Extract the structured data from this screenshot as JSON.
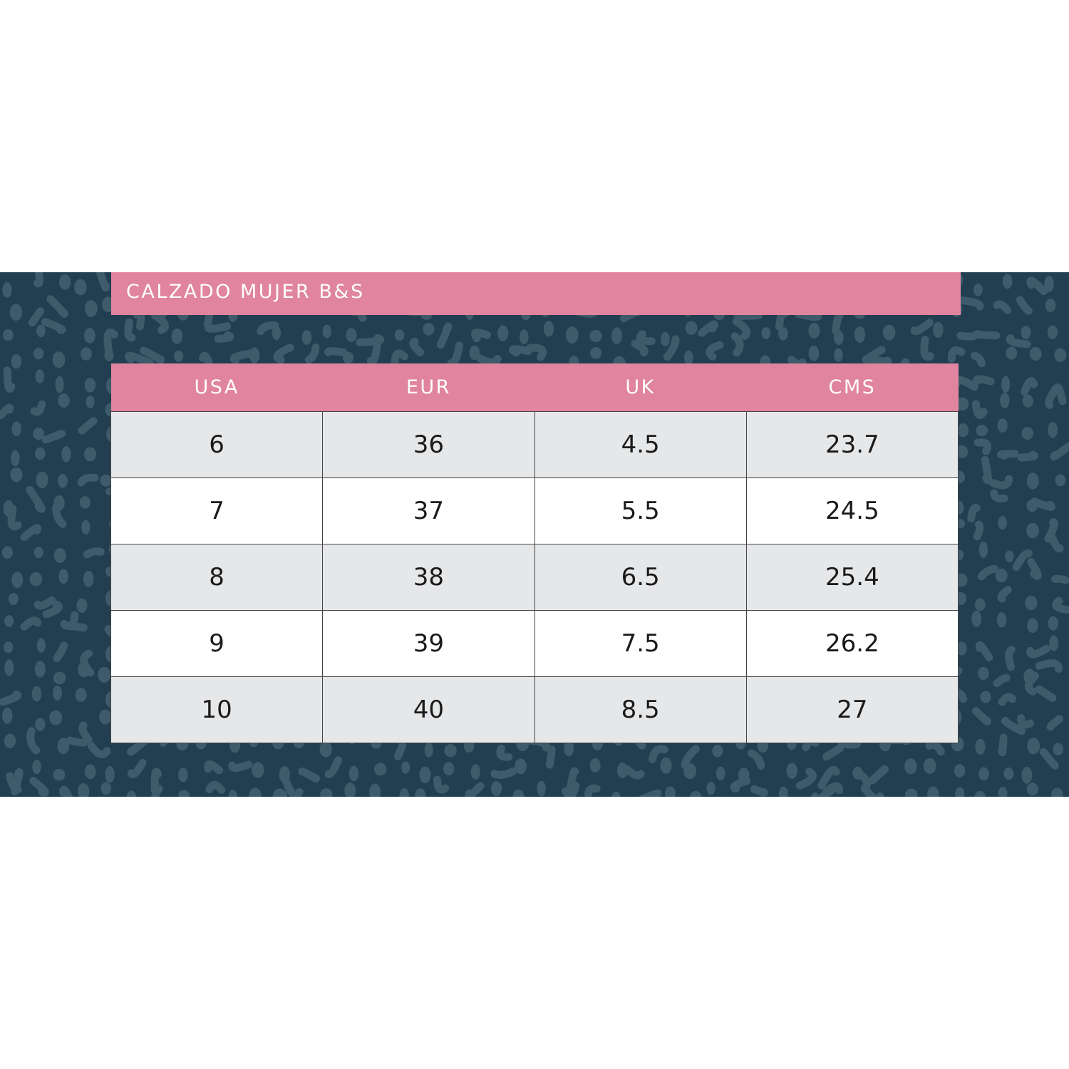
{
  "title": "CALZADO MUJER B&S",
  "colors": {
    "background": "#213f50",
    "pattern": "#3d5b6a",
    "accent": "#e0849f",
    "row_alt": "#e6e7e9"
  },
  "table": {
    "headers": [
      "USA",
      "EUR",
      "UK",
      "CMS"
    ],
    "rows": [
      [
        "6",
        "36",
        "4.5",
        "23.7"
      ],
      [
        "7",
        "37",
        "5.5",
        "24.5"
      ],
      [
        "8",
        "38",
        "6.5",
        "25.4"
      ],
      [
        "9",
        "39",
        "7.5",
        "26.2"
      ],
      [
        "10",
        "40",
        "8.5",
        "27"
      ]
    ]
  }
}
